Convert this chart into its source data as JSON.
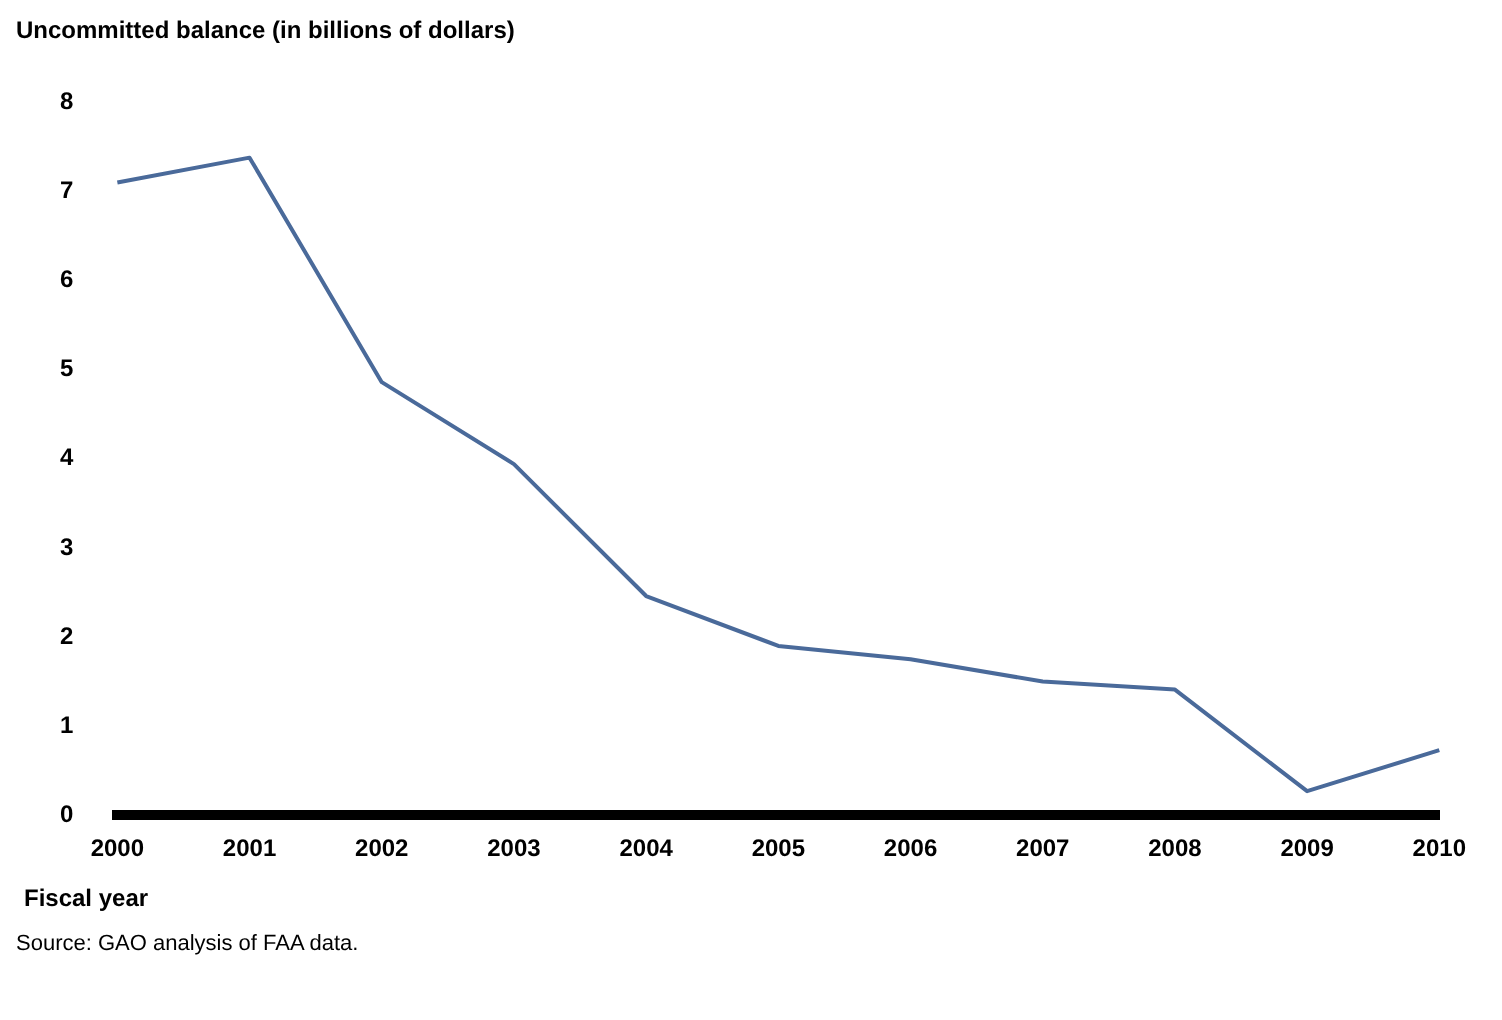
{
  "chart_data": {
    "type": "line",
    "ylabel": "Uncommitted balance (in billions of dollars)",
    "xlabel": "Fiscal year",
    "categories": [
      "2000",
      "2001",
      "2002",
      "2003",
      "2004",
      "2005",
      "2006",
      "2007",
      "2008",
      "2009",
      "2010"
    ],
    "series": [
      {
        "color": "#4a6a9a",
        "values": [
          7.1,
          7.38,
          4.86,
          3.94,
          2.46,
          1.9,
          1.75,
          1.5,
          1.41,
          0.27,
          0.73
        ]
      }
    ],
    "ylim": [
      0,
      8
    ],
    "yticks": [
      0,
      1,
      2,
      3,
      4,
      5,
      6,
      7,
      8
    ],
    "grid": false,
    "legend": false,
    "marker": "none",
    "line_style": "solid",
    "annotations": [
      "Source: GAO analysis of FAA data."
    ]
  }
}
